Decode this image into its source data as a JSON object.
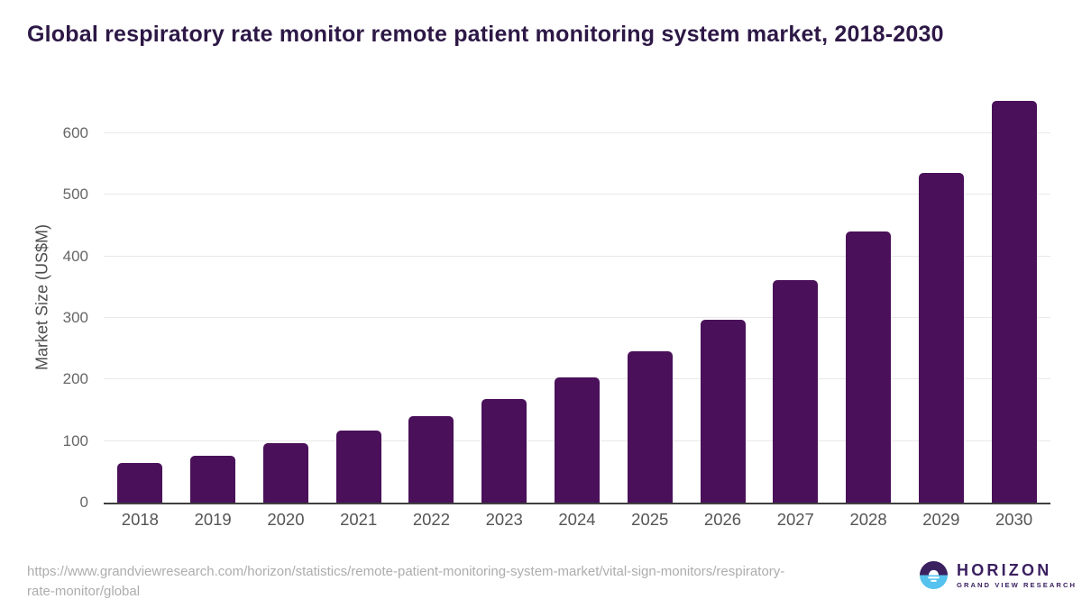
{
  "chart_data": {
    "type": "bar",
    "title": "Global respiratory rate monitor remote patient monitoring system market, 2018-2030",
    "ylabel": "Market Size (US$M)",
    "xlabel": "",
    "categories": [
      "2018",
      "2019",
      "2020",
      "2021",
      "2022",
      "2023",
      "2024",
      "2025",
      "2026",
      "2027",
      "2028",
      "2029",
      "2030"
    ],
    "values": [
      64,
      76,
      97,
      117,
      140,
      168,
      203,
      246,
      297,
      361,
      440,
      536,
      653
    ],
    "yticks": [
      0,
      100,
      200,
      300,
      400,
      500,
      600
    ],
    "ylim": [
      0,
      670
    ],
    "grid": "horizontal",
    "legend": "none",
    "bar_color": "#4a1059"
  },
  "colors": {
    "title": "#2d1846",
    "bar": "#4a1059",
    "gridline": "#e9e9e9",
    "axis_line": "#3f3f3f",
    "tick_text": "#666666",
    "url_text": "#adadad",
    "logo_purple": "#3b2060",
    "logo_blue": "#56c2ee"
  },
  "footer": {
    "url_line1": "https://www.grandviewresearch.com/horizon/statistics/remote-patient-monitoring-system-market/vital-sign-monitors/respiratory-",
    "url_line2": "rate-monitor/global",
    "logo_name": "HORIZON",
    "logo_subtitle": "GRAND VIEW RESEARCH"
  }
}
